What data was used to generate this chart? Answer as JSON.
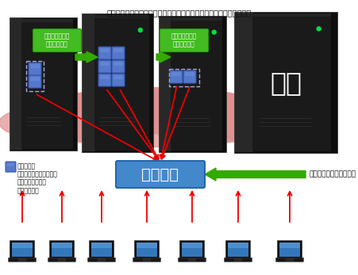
{
  "title": "ユーザ通信中にセッションマイグレーションによりサーバ台数を削減",
  "session_label": "セッション\n（ユーザが視聴している\nコンテンツ情報と\n通信の情報）",
  "state_box_text": "状態推定",
  "right_label": "ユーザ通信開始時に制御",
  "migration1": "セッションマイ\nグレーション",
  "migration2": "セッションマイ\nグレーション",
  "stop_text": "停止",
  "bg_color": "#ffffff",
  "cloud_pink": "#e09090",
  "server_body": "#111111",
  "server_face": "#1c1c1c",
  "server_edge": "#2a2a2a",
  "green_arrow": "#33aa00",
  "red_arrow": "#ee0000",
  "blue_session": "#4f6ab0",
  "state_box_color": "#4488cc",
  "state_box_edge": "#2266aa",
  "migration_box_color": "#44bb22",
  "migration_box_edge": "#229900",
  "session_sq_color": "#5577cc",
  "session_sq_edge": "#3355aa",
  "laptop_body": "#151515",
  "laptop_screen": "#3377bb",
  "green_light": "#00dd44"
}
